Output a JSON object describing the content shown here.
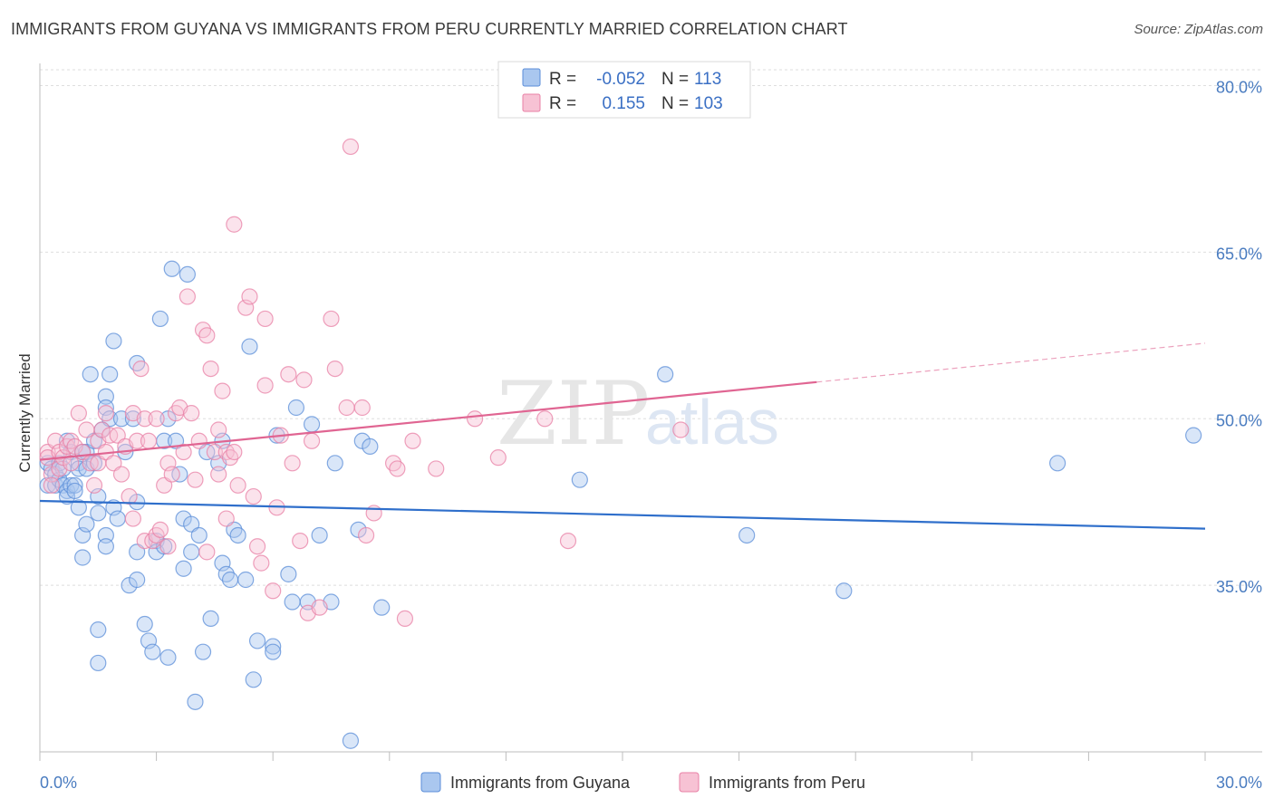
{
  "chart_data": {
    "type": "scatter",
    "title": "IMMIGRANTS FROM GUYANA VS IMMIGRANTS FROM PERU CURRENTLY MARRIED CORRELATION CHART",
    "source": "Source: ZipAtlas.com",
    "ylabel": "Currently Married",
    "xlim": [
      0,
      30
    ],
    "ylim": [
      20,
      82
    ],
    "x_tick_labels": [
      "0.0%",
      "30.0%"
    ],
    "y_ticks": [
      35,
      50,
      65,
      80
    ],
    "y_tick_labels": [
      "35.0%",
      "50.0%",
      "65.0%",
      "80.0%"
    ],
    "watermark": {
      "zip": "ZIP",
      "atlas": "atlas"
    },
    "legend": {
      "r_label": "R =",
      "n_label": "N =",
      "entries": [
        {
          "r": "-0.052",
          "n": "113"
        },
        {
          "r": "0.155",
          "n": "103"
        }
      ]
    },
    "series": [
      {
        "name": "Immigrants from Guyana",
        "color": "#5b8ed8",
        "fill": "#aac7ef",
        "trend": {
          "x0": 0,
          "y0": 42.6,
          "x1": 30,
          "y1": 40.1,
          "solid_to": 30
        },
        "points": [
          [
            0.2,
            46
          ],
          [
            0.2,
            44
          ],
          [
            0.3,
            45.5
          ],
          [
            0.4,
            45
          ],
          [
            0.4,
            44
          ],
          [
            0.5,
            44.5
          ],
          [
            0.5,
            46
          ],
          [
            0.6,
            44
          ],
          [
            0.6,
            45.5
          ],
          [
            0.7,
            43.5
          ],
          [
            0.7,
            43
          ],
          [
            0.7,
            48
          ],
          [
            0.8,
            47
          ],
          [
            0.8,
            44
          ],
          [
            0.9,
            44
          ],
          [
            0.9,
            43.5
          ],
          [
            1,
            46
          ],
          [
            1,
            45.5
          ],
          [
            1,
            42
          ],
          [
            1.1,
            47
          ],
          [
            1.1,
            39.5
          ],
          [
            1.1,
            37.5
          ],
          [
            1.2,
            47
          ],
          [
            1.2,
            45.5
          ],
          [
            1.2,
            40.5
          ],
          [
            1.3,
            54
          ],
          [
            1.4,
            48
          ],
          [
            1.4,
            46
          ],
          [
            1.5,
            43
          ],
          [
            1.5,
            41.5
          ],
          [
            1.5,
            31
          ],
          [
            1.5,
            28
          ],
          [
            1.6,
            49
          ],
          [
            1.7,
            52
          ],
          [
            1.7,
            51
          ],
          [
            1.7,
            39.5
          ],
          [
            1.7,
            38.5
          ],
          [
            1.8,
            54
          ],
          [
            1.8,
            50
          ],
          [
            1.9,
            57
          ],
          [
            1.9,
            42
          ],
          [
            2,
            41
          ],
          [
            2.1,
            50
          ],
          [
            2.2,
            47
          ],
          [
            2.3,
            35
          ],
          [
            2.4,
            50
          ],
          [
            2.5,
            55
          ],
          [
            2.5,
            42.5
          ],
          [
            2.5,
            38
          ],
          [
            2.5,
            35.5
          ],
          [
            2.7,
            31.5
          ],
          [
            2.8,
            30
          ],
          [
            2.9,
            29
          ],
          [
            3,
            39
          ],
          [
            3,
            38
          ],
          [
            3.1,
            59
          ],
          [
            3.2,
            48
          ],
          [
            3.2,
            38.5
          ],
          [
            3.3,
            50
          ],
          [
            3.3,
            28.5
          ],
          [
            3.4,
            63.5
          ],
          [
            3.5,
            48
          ],
          [
            3.6,
            45
          ],
          [
            3.7,
            41
          ],
          [
            3.7,
            36.5
          ],
          [
            3.8,
            63
          ],
          [
            3.9,
            40.5
          ],
          [
            3.9,
            38
          ],
          [
            4,
            24.5
          ],
          [
            4.1,
            39.5
          ],
          [
            4.2,
            29
          ],
          [
            4.3,
            47
          ],
          [
            4.4,
            32
          ],
          [
            4.6,
            46
          ],
          [
            4.7,
            48
          ],
          [
            4.7,
            37
          ],
          [
            4.8,
            36
          ],
          [
            4.9,
            35.5
          ],
          [
            5,
            40
          ],
          [
            5.1,
            39.5
          ],
          [
            5.3,
            35.5
          ],
          [
            5.4,
            56.5
          ],
          [
            5.5,
            26.5
          ],
          [
            5.6,
            30
          ],
          [
            6,
            29.5
          ],
          [
            6,
            29
          ],
          [
            6.1,
            48.5
          ],
          [
            6.4,
            36
          ],
          [
            6.5,
            33.5
          ],
          [
            6.6,
            51
          ],
          [
            6.9,
            33.5
          ],
          [
            7,
            49.5
          ],
          [
            7.2,
            39.5
          ],
          [
            7.5,
            33.5
          ],
          [
            7.6,
            46
          ],
          [
            8,
            21
          ],
          [
            8.2,
            40
          ],
          [
            8.3,
            48
          ],
          [
            8.5,
            47.5
          ],
          [
            8.8,
            33
          ],
          [
            13.9,
            44.5
          ],
          [
            16.1,
            54
          ],
          [
            18.2,
            39.5
          ],
          [
            20.7,
            34.5
          ],
          [
            26.2,
            46
          ],
          [
            29.7,
            48.5
          ]
        ]
      },
      {
        "name": "Immigrants from Peru",
        "color": "#e880a6",
        "fill": "#f7c2d4",
        "trend": {
          "x0": 0,
          "y0": 46.3,
          "x1": 30,
          "y1": 56.8,
          "solid_to": 20
        },
        "points": [
          [
            0.2,
            47
          ],
          [
            0.2,
            46.5
          ],
          [
            0.3,
            45
          ],
          [
            0.3,
            44
          ],
          [
            0.4,
            48
          ],
          [
            0.5,
            47
          ],
          [
            0.5,
            45.5
          ],
          [
            0.6,
            46.5
          ],
          [
            0.7,
            47.5
          ],
          [
            0.8,
            48
          ],
          [
            0.8,
            46
          ],
          [
            0.9,
            47.5
          ],
          [
            1,
            50.5
          ],
          [
            1.1,
            47
          ],
          [
            1.2,
            49
          ],
          [
            1.3,
            46
          ],
          [
            1.4,
            44
          ],
          [
            1.5,
            48
          ],
          [
            1.5,
            46
          ],
          [
            1.6,
            49
          ],
          [
            1.7,
            50.5
          ],
          [
            1.7,
            47
          ],
          [
            1.8,
            48.5
          ],
          [
            1.9,
            46
          ],
          [
            2,
            48.5
          ],
          [
            2.1,
            45
          ],
          [
            2.2,
            47.5
          ],
          [
            2.3,
            43
          ],
          [
            2.4,
            50.5
          ],
          [
            2.4,
            41
          ],
          [
            2.5,
            48
          ],
          [
            2.6,
            54.5
          ],
          [
            2.7,
            50
          ],
          [
            2.7,
            39
          ],
          [
            2.8,
            48
          ],
          [
            2.9,
            39
          ],
          [
            3,
            50
          ],
          [
            3,
            39.5
          ],
          [
            3.1,
            40
          ],
          [
            3.2,
            44
          ],
          [
            3.3,
            46
          ],
          [
            3.3,
            38.5
          ],
          [
            3.4,
            45
          ],
          [
            3.5,
            50.5
          ],
          [
            3.6,
            51
          ],
          [
            3.7,
            47
          ],
          [
            3.8,
            61
          ],
          [
            3.9,
            50.5
          ],
          [
            4,
            44.5
          ],
          [
            4.1,
            48
          ],
          [
            4.2,
            58
          ],
          [
            4.3,
            57.5
          ],
          [
            4.3,
            38
          ],
          [
            4.4,
            54.5
          ],
          [
            4.5,
            47
          ],
          [
            4.6,
            49
          ],
          [
            4.6,
            45
          ],
          [
            4.7,
            52.5
          ],
          [
            4.8,
            47
          ],
          [
            4.8,
            41
          ],
          [
            4.9,
            46.5
          ],
          [
            5,
            67.5
          ],
          [
            5,
            47
          ],
          [
            5.1,
            44
          ],
          [
            5.3,
            60
          ],
          [
            5.4,
            61
          ],
          [
            5.5,
            43
          ],
          [
            5.6,
            38.5
          ],
          [
            5.7,
            37
          ],
          [
            5.8,
            59
          ],
          [
            5.8,
            53
          ],
          [
            6,
            34.5
          ],
          [
            6.1,
            42
          ],
          [
            6.2,
            48.5
          ],
          [
            6.4,
            54
          ],
          [
            6.5,
            46
          ],
          [
            6.7,
            39
          ],
          [
            6.8,
            53.5
          ],
          [
            6.9,
            32.5
          ],
          [
            7,
            48
          ],
          [
            7.2,
            33
          ],
          [
            7.5,
            59
          ],
          [
            7.6,
            54.5
          ],
          [
            7.9,
            51
          ],
          [
            8,
            74.5
          ],
          [
            8.3,
            51
          ],
          [
            8.4,
            39.5
          ],
          [
            8.6,
            41.5
          ],
          [
            9.1,
            46
          ],
          [
            9.2,
            45.5
          ],
          [
            9.4,
            32
          ],
          [
            9.6,
            48
          ],
          [
            10.2,
            45.5
          ],
          [
            11.2,
            50
          ],
          [
            11.8,
            46.5
          ],
          [
            13,
            50
          ],
          [
            13.6,
            39
          ],
          [
            16.5,
            49
          ]
        ]
      }
    ]
  }
}
